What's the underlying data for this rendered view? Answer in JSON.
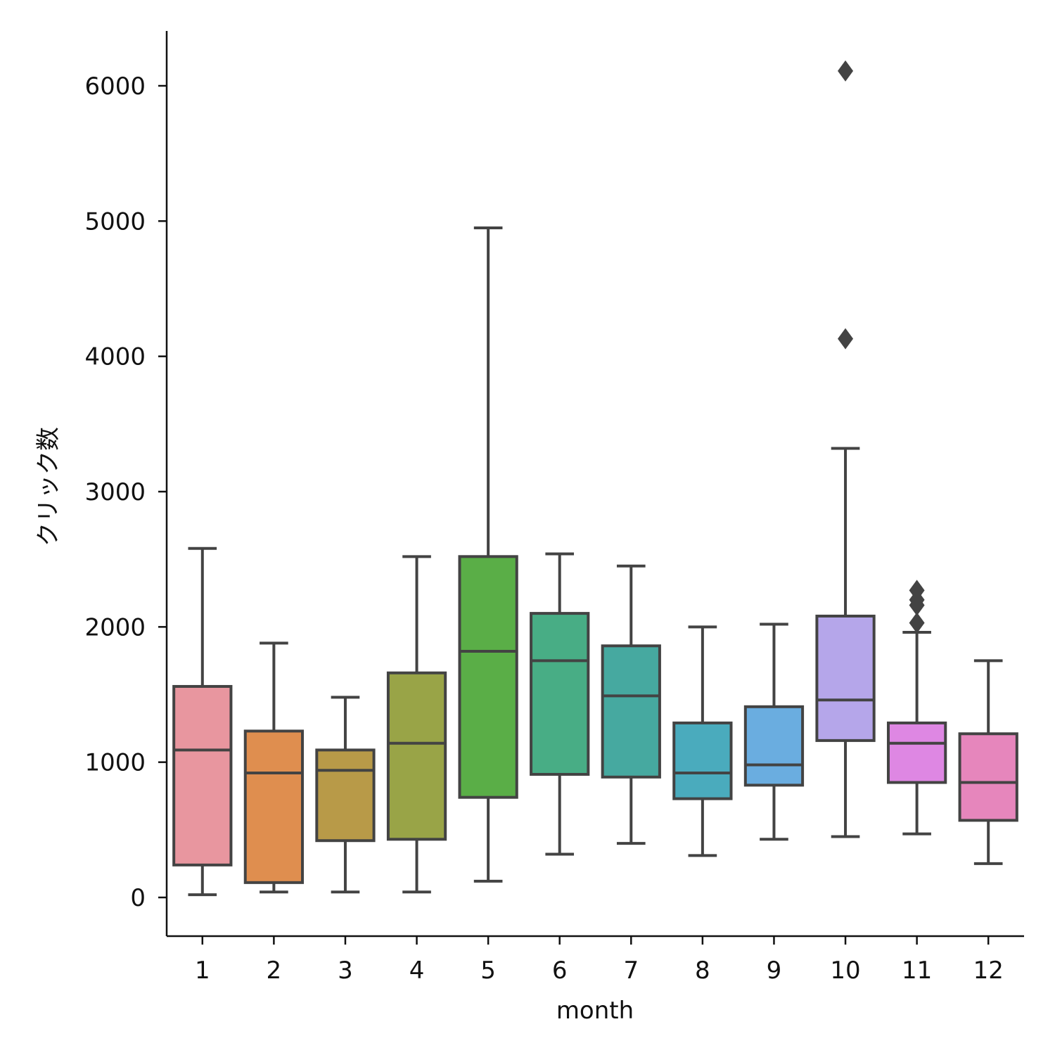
{
  "chart_data": {
    "type": "boxplot",
    "title": "",
    "xlabel": "month",
    "ylabel": "クリック数",
    "ylim": [
      -290,
      6400
    ],
    "yticks": [
      0,
      1000,
      2000,
      3000,
      4000,
      5000,
      6000
    ],
    "categories": [
      "1",
      "2",
      "3",
      "4",
      "5",
      "6",
      "7",
      "8",
      "9",
      "10",
      "11",
      "12"
    ],
    "colors": [
      "#e8969f",
      "#df8e4f",
      "#b89a48",
      "#99a447",
      "#5aae47",
      "#48ad85",
      "#46a9a0",
      "#4aabbd",
      "#6aade0",
      "#b5a6ea",
      "#de87e3",
      "#e686bc"
    ],
    "edge_color": "#434343",
    "boxes": [
      {
        "month": "1",
        "whislo": 20,
        "q1": 240,
        "med": 1090,
        "q3": 1560,
        "whishi": 2580,
        "fliers": []
      },
      {
        "month": "2",
        "whislo": 40,
        "q1": 110,
        "med": 920,
        "q3": 1230,
        "whishi": 1880,
        "fliers": []
      },
      {
        "month": "3",
        "whislo": 40,
        "q1": 420,
        "med": 940,
        "q3": 1090,
        "whishi": 1480,
        "fliers": []
      },
      {
        "month": "4",
        "whislo": 40,
        "q1": 430,
        "med": 1140,
        "q3": 1660,
        "whishi": 2520,
        "fliers": []
      },
      {
        "month": "5",
        "whislo": 120,
        "q1": 740,
        "med": 1820,
        "q3": 2520,
        "whishi": 4950,
        "fliers": []
      },
      {
        "month": "6",
        "whislo": 320,
        "q1": 910,
        "med": 1750,
        "q3": 2100,
        "whishi": 2540,
        "fliers": []
      },
      {
        "month": "7",
        "whislo": 400,
        "q1": 890,
        "med": 1490,
        "q3": 1860,
        "whishi": 2450,
        "fliers": []
      },
      {
        "month": "8",
        "whislo": 310,
        "q1": 730,
        "med": 920,
        "q3": 1290,
        "whishi": 2000,
        "fliers": []
      },
      {
        "month": "9",
        "whislo": 430,
        "q1": 830,
        "med": 980,
        "q3": 1410,
        "whishi": 2020,
        "fliers": []
      },
      {
        "month": "10",
        "whislo": 450,
        "q1": 1160,
        "med": 1460,
        "q3": 2080,
        "whishi": 3320,
        "fliers": [
          4130,
          6110
        ]
      },
      {
        "month": "11",
        "whislo": 470,
        "q1": 850,
        "med": 1140,
        "q3": 1290,
        "whishi": 1960,
        "fliers": [
          2030,
          2160,
          2200,
          2270
        ]
      },
      {
        "month": "12",
        "whislo": 250,
        "q1": 570,
        "med": 850,
        "q3": 1210,
        "whishi": 1750,
        "fliers": []
      }
    ]
  }
}
